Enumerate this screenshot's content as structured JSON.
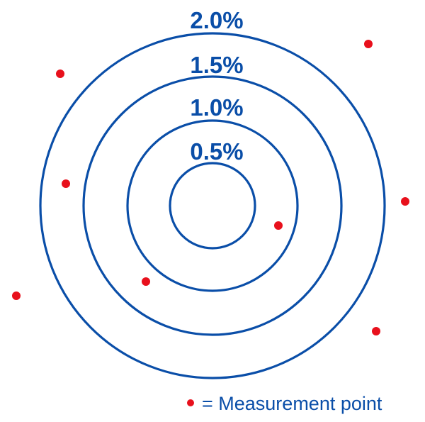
{
  "colors": {
    "ring": "#0a4ea8",
    "label": "#0a4ea8",
    "point": "#e8101c"
  },
  "rings": [
    {
      "label": "0.5%"
    },
    {
      "label": "1.0%"
    },
    {
      "label": "1.5%"
    },
    {
      "label": "2.0%"
    }
  ],
  "legend": {
    "text": "= Measurement point"
  }
}
